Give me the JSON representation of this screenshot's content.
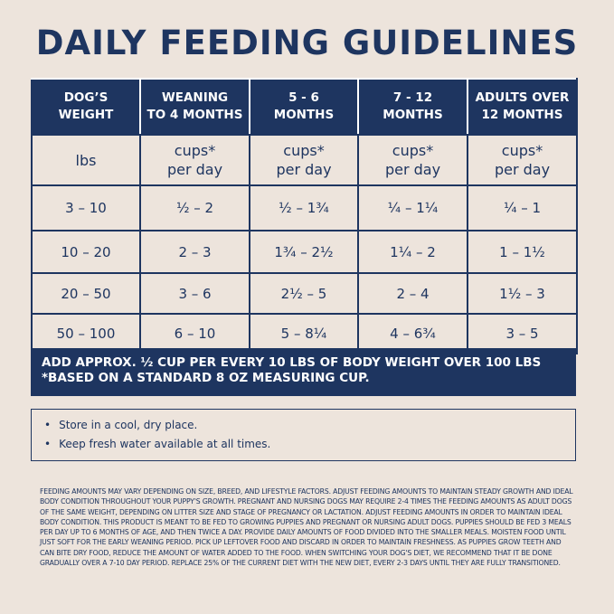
{
  "title": "DAILY FEEDING GUIDELINES",
  "table": {
    "header": [
      "DOG’S\nWEIGHT",
      "WEANING\nTO 4 MONTHS",
      "5 - 6\nMONTHS",
      "7 - 12\nMONTHS",
      "ADULTS OVER\n12 MONTHS"
    ],
    "units": [
      "lbs",
      "cups*\nper day",
      "cups*\nper day",
      "cups*\nper day",
      "cups*\nper day"
    ],
    "rows": [
      [
        "3 – 10",
        "½ – 2",
        "½ – 1¾",
        "¼ – 1¼",
        "¼ – 1"
      ],
      [
        "10 – 20",
        "2 – 3",
        "1¾ – 2½",
        "1¼ – 2",
        "1 – 1½"
      ],
      [
        "20 – 50",
        "3 – 6",
        "2½ – 5",
        "2 – 4",
        "1½ – 3"
      ],
      [
        "50 – 100",
        "6 – 10",
        "5 – 8¼",
        "4 – 6¾",
        "3 – 5"
      ]
    ],
    "footer": [
      "ADD APPROX. ½ CUP PER EVERY 10 LBS OF BODY WEIGHT OVER 100 LBS",
      "*BASED ON A STANDARD 8 OZ MEASURING CUP."
    ]
  },
  "notes": [
    "Store in a cool, dry place.",
    "Keep fresh water available at all times."
  ],
  "disclaimer": "FEEDING AMOUNTS MAY VARY DEPENDING ON SIZE, BREED, AND LIFESTYLE FACTORS. ADJUST FEEDING AMOUNTS TO MAINTAIN STEADY GROWTH AND IDEAL BODY CONDITION THROUGHOUT YOUR PUPPY'S GROWTH. PREGNANT AND NURSING DOGS MAY REQUIRE 2-4 TIMES THE FEEDING AMOUNTS AS ADULT DOGS OF THE SAME WEIGHT, DEPENDING ON LITTER SIZE AND STAGE OF PREGNANCY OR LACTATION. ADJUST FEEDING AMOUNTS IN ORDER TO MAINTAIN IDEAL BODY CONDITION. THIS PRODUCT IS MEANT TO BE FED TO GROWING PUPPIES AND PREGNANT OR NURSING ADULT DOGS. PUPPIES SHOULD BE FED 3 MEALS PER DAY UP TO 6 MONTHS OF AGE, AND THEN TWICE A DAY. PROVIDE DAILY AMOUNTS OF FOOD DIVIDED INTO THE SMALLER MEALS. MOISTEN FOOD UNTIL JUST SOFT FOR THE EARLY WEANING PERIOD. PICK UP LEFTOVER FOOD AND DISCARD IN ORDER TO MAINTAIN FRESHNESS. AS PUPPIES GROW TEETH AND CAN BITE DRY FOOD, REDUCE THE AMOUNT OF WATER ADDED TO THE FOOD. WHEN SWITCHING YOUR DOG'S DIET, WE RECOMMEND THAT IT BE DONE GRADUALLY OVER A 7-10 DAY PERIOD. REPLACE 25% OF THE CURRENT DIET WITH THE NEW DIET, EVERY 2-3 DAYS UNTIL THEY ARE FULLY TRANSITIONED."
}
